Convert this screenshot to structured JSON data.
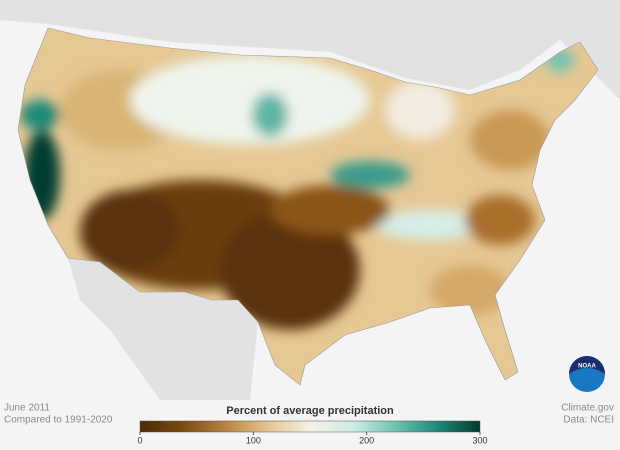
{
  "map": {
    "date": "June 2011",
    "baseline": "Compared to 1991-2020",
    "credit": "Climate.gov",
    "source": "Data: NCEI",
    "logo": "NOAA"
  },
  "colorbar": {
    "title": "Percent of average precipitation",
    "range": [
      0,
      300
    ],
    "ticks": [
      0,
      100,
      200,
      300
    ],
    "colors": [
      "#4a2a05",
      "#7a4a0f",
      "#b7833e",
      "#e3c48e",
      "#f6f1e4",
      "#cdeee6",
      "#6fc2b1",
      "#1f8a78",
      "#003c30"
    ]
  }
}
